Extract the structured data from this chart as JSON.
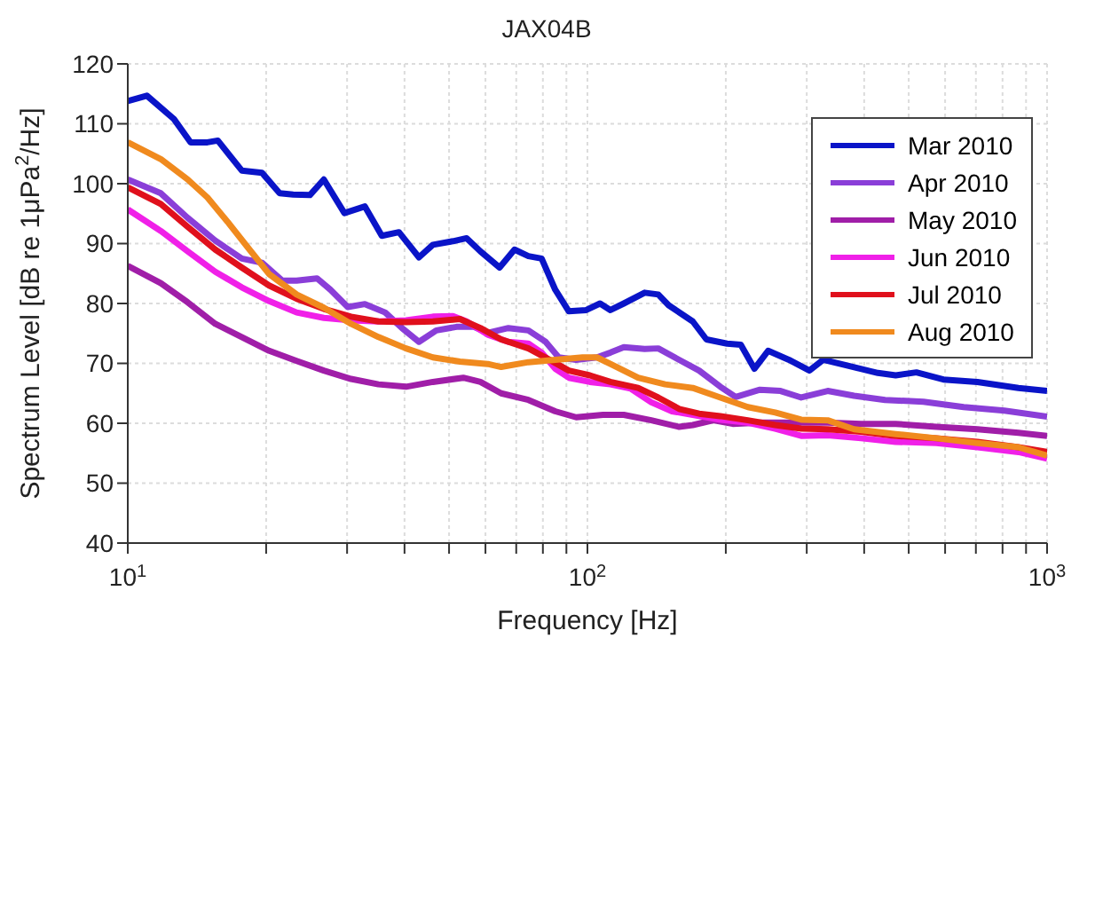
{
  "chart_data": {
    "type": "line",
    "title": "JAX04B",
    "xlabel": "Frequency [Hz]",
    "ylabel": "Spectrum Level [dB re 1μPa$^{2}$/Hz]",
    "log": "x",
    "grid": true,
    "legend": "top right",
    "line_style": "solid",
    "marker": "none",
    "xlim": [
      10,
      1000
    ],
    "ylim": [
      40,
      120
    ],
    "xticks": [
      {
        "value": 10,
        "label": "10$^{1}$"
      },
      {
        "value": 20,
        "label": null
      },
      {
        "value": 30,
        "label": null
      },
      {
        "value": 40,
        "label": null
      },
      {
        "value": 50,
        "label": null
      },
      {
        "value": 60,
        "label": null
      },
      {
        "value": 70,
        "label": null
      },
      {
        "value": 80,
        "label": null
      },
      {
        "value": 90,
        "label": null
      },
      {
        "value": 100,
        "label": "10$^{2}$"
      },
      {
        "value": 200,
        "label": null
      },
      {
        "value": 300,
        "label": null
      },
      {
        "value": 400,
        "label": null
      },
      {
        "value": 500,
        "label": null
      },
      {
        "value": 600,
        "label": null
      },
      {
        "value": 700,
        "label": null
      },
      {
        "value": 800,
        "label": null
      },
      {
        "value": 900,
        "label": null
      },
      {
        "value": 1000,
        "label": "10$^{3}$"
      }
    ],
    "yticks": [
      40,
      50,
      60,
      70,
      80,
      90,
      100,
      110,
      120
    ],
    "series": [
      {
        "name": "Mar 2010",
        "color": "#0a14c8",
        "x": [
          10,
          11,
          12.6,
          13.7,
          14.9,
          15.7,
          17.7,
          19.6,
          21.4,
          22.9,
          24.9,
          26.7,
          29.6,
          32.8,
          35.7,
          38.9,
          43,
          46.1,
          51,
          54.6,
          58.5,
          64.4,
          69.4,
          74.4,
          79.5,
          85.1,
          91.1,
          99.4,
          106.5,
          112.2,
          120,
          133.2,
          142.6,
          150.2,
          169.5,
          181.5,
          201.3,
          215.6,
          230.8,
          247.2,
          274.3,
          304.2,
          325.7,
          373.8,
          428.4,
          468.4,
          519.6,
          594.8,
          705.5,
          866.3,
          1000
        ],
        "values": [
          113.8,
          114.7,
          110.8,
          106.9,
          106.9,
          107.2,
          102.2,
          101.8,
          98.4,
          98.2,
          98.1,
          100.7,
          95.1,
          96.2,
          91.3,
          91.9,
          87.7,
          89.8,
          90.4,
          90.9,
          88.7,
          86,
          89,
          87.9,
          87.5,
          82.3,
          78.7,
          78.9,
          80,
          78.9,
          80,
          81.8,
          81.5,
          79.7,
          77,
          74,
          73.3,
          73.1,
          69.1,
          72.1,
          70.6,
          68.8,
          70.6,
          69.5,
          68.4,
          68,
          68.5,
          67.3,
          66.9,
          65.9,
          65.4
        ]
      },
      {
        "name": "Apr 2010",
        "color": "#8a3ed8",
        "x": [
          10,
          11.8,
          13.5,
          15.5,
          17.7,
          19.6,
          21.7,
          23.3,
          25.8,
          27.6,
          30.1,
          32.8,
          36.3,
          39.5,
          43,
          46.9,
          51.9,
          56.6,
          60.7,
          67.3,
          74.4,
          81.1,
          86.6,
          94.5,
          104.9,
          112.2,
          120,
          133.2,
          142.6,
          158.3,
          175,
          194.6,
          210.2,
          237.3,
          263.1,
          291.8,
          333.2,
          380.3,
          444.1,
          538.2,
          658.6,
          807.6,
          1000
        ],
        "values": [
          100.7,
          98.4,
          94.3,
          90.5,
          87.5,
          86.8,
          83.8,
          83.8,
          84.2,
          82.3,
          79.4,
          79.9,
          78.5,
          75.9,
          73.6,
          75.5,
          76.1,
          76.1,
          75.1,
          75.9,
          75.5,
          73.6,
          71,
          70.6,
          71,
          71.8,
          72.7,
          72.4,
          72.5,
          70.6,
          68.8,
          66.1,
          64.4,
          65.6,
          65.4,
          64.3,
          65.4,
          64.6,
          63.9,
          63.6,
          62.7,
          62.1,
          61.1
        ]
      },
      {
        "name": "May 2010",
        "color": "#a01ea8",
        "x": [
          10,
          11.8,
          13.5,
          15.5,
          17.7,
          20.3,
          23.3,
          26.7,
          30.6,
          35.1,
          40.3,
          46.1,
          53.7,
          58.5,
          64.9,
          74.4,
          85.1,
          94.5,
          108.1,
          120,
          137.7,
          158.3,
          169.5,
          187.9,
          207.1,
          237.3,
          291.8,
          333.2,
          393.7,
          468.4,
          574.5,
          705.5,
          866.3,
          1000
        ],
        "values": [
          86.3,
          83.4,
          80.2,
          76.6,
          74.4,
          72.1,
          70.4,
          68.8,
          67.4,
          66.5,
          66.1,
          66.9,
          67.6,
          66.9,
          65,
          63.9,
          62,
          61,
          61.4,
          61.4,
          60.5,
          59.4,
          59.7,
          60.5,
          59.9,
          60.1,
          60.1,
          60.1,
          59.9,
          59.9,
          59.4,
          59,
          58.4,
          57.9
        ]
      },
      {
        "name": "Jun 2010",
        "color": "#f020e8",
        "x": [
          10,
          11.8,
          13.5,
          15.5,
          17.7,
          20.3,
          23.3,
          26.7,
          30.6,
          35.1,
          40.3,
          46.1,
          51,
          54.6,
          60.7,
          67.3,
          74.4,
          79.5,
          85.1,
          91.1,
          101.2,
          112.2,
          124.1,
          137.7,
          152.7,
          169.5,
          194.6,
          223.3,
          256.2,
          291.8,
          333.2,
          393.7,
          468.4,
          574.5,
          705.5,
          866.3,
          1000
        ],
        "values": [
          95.7,
          92.1,
          88.7,
          85.3,
          82.7,
          80.4,
          78.5,
          77.6,
          77.2,
          77,
          77.2,
          77.8,
          77.9,
          77,
          74.8,
          73.6,
          73.3,
          71.8,
          69.1,
          67.6,
          66.9,
          66.5,
          65.8,
          63.5,
          62,
          61.4,
          60.6,
          60.1,
          59.1,
          57.9,
          58,
          57.5,
          56.9,
          56.7,
          56,
          55.2,
          54.1
        ]
      },
      {
        "name": "Jul 2010",
        "color": "#e0101c",
        "x": [
          10,
          11.8,
          13.5,
          15.5,
          17.7,
          20.3,
          23.3,
          26.7,
          30.6,
          35.1,
          40.3,
          46.1,
          52.8,
          58.5,
          64.9,
          74.4,
          82.7,
          91.1,
          101.2,
          112.2,
          128.9,
          142.6,
          158.3,
          175,
          194.6,
          223.3,
          256.2,
          291.8,
          333.2,
          393.7,
          468.4,
          574.5,
          705.5,
          866.3,
          1000
        ],
        "values": [
          99.4,
          96.6,
          92.8,
          89,
          86,
          83,
          80.8,
          79.1,
          77.8,
          77,
          76.9,
          77,
          77.4,
          75.9,
          74,
          72.5,
          70.6,
          68.8,
          68,
          66.9,
          65.9,
          64.3,
          62.4,
          61.6,
          61.2,
          60.5,
          59.7,
          59.1,
          59,
          58.6,
          57.9,
          57.5,
          56.9,
          56,
          55.2
        ]
      },
      {
        "name": "Aug 2010",
        "color": "#f08a1e",
        "x": [
          10,
          11.8,
          13.5,
          14.9,
          16.5,
          18.4,
          20.3,
          23.3,
          26.7,
          30.6,
          35.1,
          40.3,
          46.1,
          52.8,
          60.7,
          64.9,
          74.4,
          85.1,
          97.6,
          104.9,
          112.2,
          128.9,
          147.6,
          169.5,
          194.6,
          223.3,
          256.2,
          291.8,
          333.2,
          380.3,
          468.4,
          574.5,
          705.5,
          866.3,
          1000
        ],
        "values": [
          106.9,
          104.1,
          100.7,
          97.7,
          93.6,
          89,
          84.9,
          81.5,
          79.3,
          76.6,
          74.4,
          72.5,
          71,
          70.3,
          69.9,
          69.4,
          70.2,
          70.6,
          71,
          71,
          69.9,
          67.6,
          66.5,
          65.9,
          64.3,
          62.7,
          61.8,
          60.6,
          60.5,
          59,
          58.2,
          57.5,
          56.7,
          56,
          54.6
        ]
      }
    ]
  }
}
